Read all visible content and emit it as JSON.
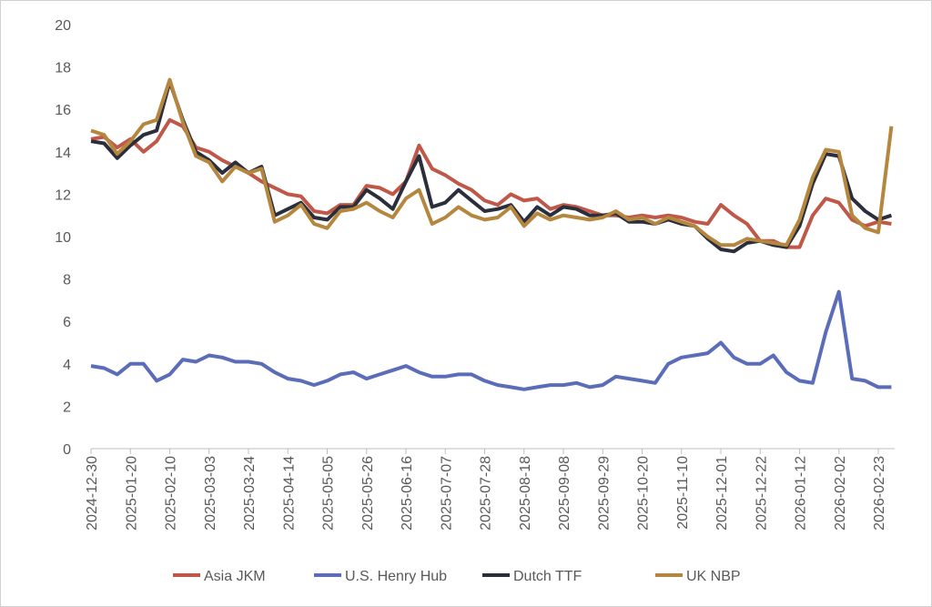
{
  "chart_data": {
    "type": "line",
    "title": "",
    "xlabel": "",
    "ylabel": "",
    "ylim": [
      0,
      20
    ],
    "yticks": [
      "0",
      "2",
      "4",
      "6",
      "8",
      "10",
      "12",
      "14",
      "16",
      "18",
      "20"
    ],
    "xticks": [
      "2024-12-30",
      "2025-01-20",
      "2025-02-10",
      "2025-03-03",
      "2025-03-24",
      "2025-04-14",
      "2025-05-05",
      "2025-05-26",
      "2025-06-16",
      "2025-07-07",
      "2025-07-28",
      "2025-08-18",
      "2025-09-08",
      "2025-09-29",
      "2025-10-20",
      "2025-11-10",
      "2025-12-01",
      "2025-12-22",
      "2026-01-12",
      "2026-02-02",
      "2026-02-23"
    ],
    "x_start": "2024-12-30",
    "x_step_days": 7,
    "x_span_days": 430,
    "grid": false,
    "legend_position": "bottom",
    "series": [
      {
        "name": "Asia JKM",
        "color": "#C0584A",
        "values": [
          14.6,
          14.7,
          14.2,
          14.6,
          14.0,
          14.5,
          15.5,
          15.2,
          14.2,
          14.0,
          13.6,
          13.3,
          13.0,
          12.6,
          12.3,
          12.0,
          11.9,
          11.2,
          11.1,
          11.5,
          11.5,
          12.4,
          12.3,
          12.0,
          12.6,
          14.3,
          13.2,
          12.9,
          12.5,
          12.2,
          11.7,
          11.5,
          12.0,
          11.7,
          11.8,
          11.3,
          11.5,
          11.4,
          11.2,
          11.0,
          11.0,
          10.9,
          11.0,
          10.9,
          11.0,
          10.9,
          10.7,
          10.6,
          11.5,
          11.0,
          10.6,
          9.8,
          9.8,
          9.5,
          9.5,
          11.0,
          11.8,
          11.6,
          10.8,
          10.5,
          10.7,
          10.6
        ]
      },
      {
        "name": "U.S. Henry Hub",
        "color": "#5B6DB8",
        "values": [
          3.9,
          3.8,
          3.5,
          4.0,
          4.0,
          3.2,
          3.5,
          4.2,
          4.1,
          4.4,
          4.3,
          4.1,
          4.1,
          4.0,
          3.6,
          3.3,
          3.2,
          3.0,
          3.2,
          3.5,
          3.6,
          3.3,
          3.5,
          3.7,
          3.9,
          3.6,
          3.4,
          3.4,
          3.5,
          3.5,
          3.2,
          3.0,
          2.9,
          2.8,
          2.9,
          3.0,
          3.0,
          3.1,
          2.9,
          3.0,
          3.4,
          3.3,
          3.2,
          3.1,
          4.0,
          4.3,
          4.4,
          4.5,
          5.0,
          4.3,
          4.0,
          4.0,
          4.4,
          3.6,
          3.2,
          3.1,
          5.5,
          7.4,
          3.3,
          3.2,
          2.9,
          2.9
        ]
      },
      {
        "name": "Dutch TTF",
        "color": "#2B2F3B",
        "values": [
          14.5,
          14.4,
          13.7,
          14.3,
          14.8,
          15.0,
          17.3,
          15.5,
          14.0,
          13.6,
          13.0,
          13.5,
          13.0,
          13.3,
          11.0,
          11.3,
          11.6,
          10.9,
          10.8,
          11.4,
          11.4,
          12.2,
          11.8,
          11.3,
          12.6,
          13.8,
          11.4,
          11.6,
          12.2,
          11.7,
          11.2,
          11.3,
          11.5,
          10.7,
          11.4,
          11.0,
          11.4,
          11.3,
          11.0,
          11.0,
          11.1,
          10.7,
          10.7,
          10.6,
          10.8,
          10.6,
          10.5,
          9.9,
          9.4,
          9.3,
          9.7,
          9.8,
          9.6,
          9.5,
          10.5,
          12.5,
          13.9,
          13.8,
          11.8,
          11.2,
          10.8,
          11.0
        ]
      },
      {
        "name": "UK NBP",
        "color": "#B5873E",
        "values": [
          15.0,
          14.8,
          13.9,
          14.5,
          15.3,
          15.5,
          17.4,
          15.4,
          13.8,
          13.5,
          12.6,
          13.3,
          13.0,
          13.2,
          10.7,
          11.0,
          11.5,
          10.6,
          10.4,
          11.2,
          11.3,
          11.6,
          11.2,
          10.9,
          11.8,
          12.2,
          10.6,
          10.9,
          11.4,
          11.0,
          10.8,
          10.9,
          11.4,
          10.5,
          11.1,
          10.8,
          11.0,
          10.9,
          10.8,
          10.9,
          11.2,
          10.8,
          10.9,
          10.6,
          10.9,
          10.7,
          10.5,
          10.0,
          9.6,
          9.6,
          9.9,
          9.8,
          9.7,
          9.6,
          10.8,
          12.8,
          14.1,
          14.0,
          11.0,
          10.4,
          10.2,
          15.2
        ]
      }
    ]
  }
}
